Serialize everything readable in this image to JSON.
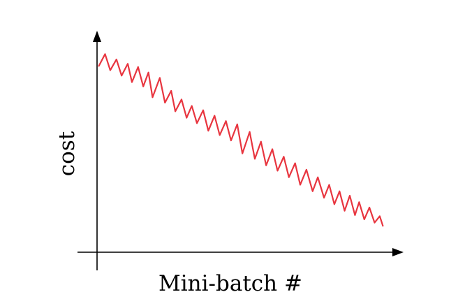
{
  "chart_data": {
    "type": "line",
    "xlabel": "Mini-batch #",
    "ylabel": "cost",
    "grid": false,
    "legend": "none",
    "x_range": [
      -1.8,
      29.3
    ],
    "y_range": [
      -1.2,
      9.5
    ],
    "series": [
      {
        "color": "#e8353f",
        "points": [
          [
            0.0,
            8.0
          ],
          [
            0.6,
            8.55
          ],
          [
            1.1,
            7.8
          ],
          [
            1.7,
            8.3
          ],
          [
            2.2,
            7.55
          ],
          [
            2.8,
            8.1
          ],
          [
            3.2,
            7.25
          ],
          [
            3.8,
            7.95
          ],
          [
            4.3,
            7.05
          ],
          [
            4.8,
            7.7
          ],
          [
            5.2,
            6.55
          ],
          [
            5.9,
            7.45
          ],
          [
            6.4,
            6.3
          ],
          [
            7.0,
            6.85
          ],
          [
            7.4,
            5.9
          ],
          [
            8.0,
            6.45
          ],
          [
            8.5,
            5.6
          ],
          [
            9.0,
            6.15
          ],
          [
            9.5,
            5.35
          ],
          [
            10.1,
            5.95
          ],
          [
            10.6,
            5.0
          ],
          [
            11.2,
            5.7
          ],
          [
            11.7,
            4.8
          ],
          [
            12.3,
            5.45
          ],
          [
            12.8,
            4.55
          ],
          [
            13.4,
            5.3
          ],
          [
            13.9,
            3.95
          ],
          [
            14.6,
            4.95
          ],
          [
            15.1,
            3.7
          ],
          [
            15.7,
            4.5
          ],
          [
            16.2,
            3.4
          ],
          [
            16.8,
            4.15
          ],
          [
            17.3,
            3.15
          ],
          [
            17.9,
            3.8
          ],
          [
            18.4,
            2.85
          ],
          [
            19.0,
            3.5
          ],
          [
            19.5,
            2.5
          ],
          [
            20.1,
            3.2
          ],
          [
            20.7,
            2.2
          ],
          [
            21.2,
            2.85
          ],
          [
            21.8,
            1.9
          ],
          [
            22.3,
            2.5
          ],
          [
            22.8,
            1.6
          ],
          [
            23.3,
            2.2
          ],
          [
            23.8,
            1.3
          ],
          [
            24.3,
            2.0
          ],
          [
            24.8,
            1.1
          ],
          [
            25.2,
            1.7
          ],
          [
            25.7,
            0.9
          ],
          [
            26.2,
            1.45
          ],
          [
            26.7,
            0.75
          ],
          [
            27.2,
            1.05
          ],
          [
            27.5,
            0.6
          ]
        ]
      }
    ]
  }
}
